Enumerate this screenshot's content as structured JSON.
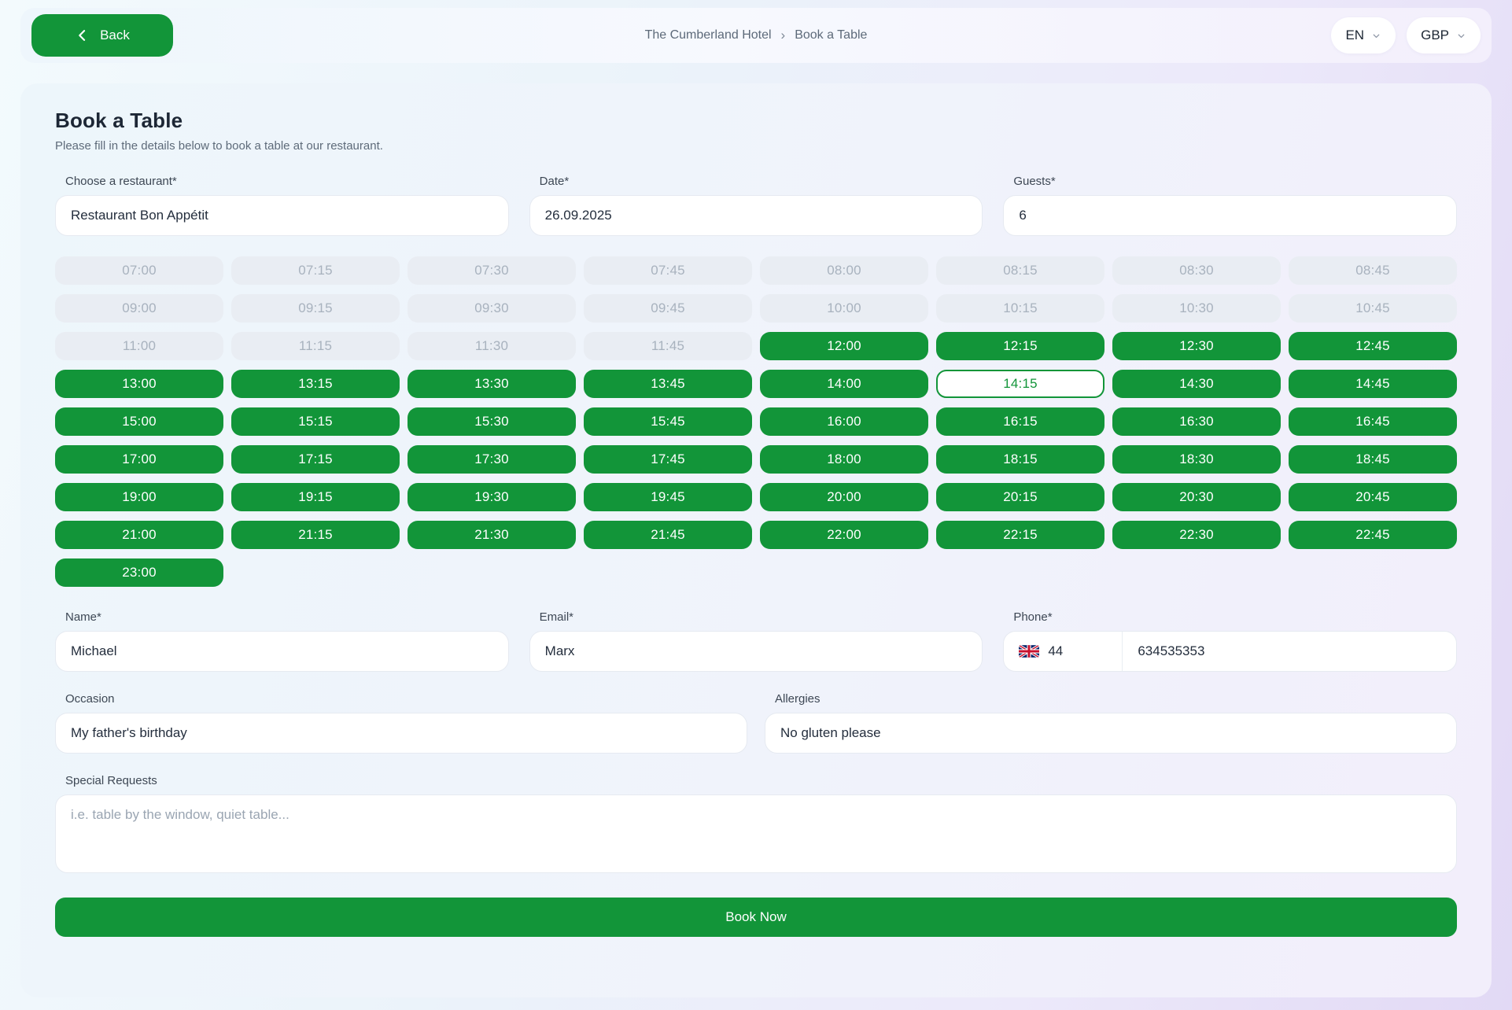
{
  "header": {
    "back_label": "Back",
    "breadcrumb": {
      "items": [
        "The Cumberland Hotel",
        "Book a Table"
      ],
      "separator": "›"
    },
    "language": "EN",
    "currency": "GBP"
  },
  "page": {
    "title": "Book a Table",
    "subtitle": "Please fill in the details below to book a table at our restaurant."
  },
  "form": {
    "restaurant": {
      "label": "Choose a restaurant*",
      "value": "Restaurant Bon Appétit"
    },
    "date": {
      "label": "Date*",
      "value": "26.09.2025"
    },
    "guests": {
      "label": "Guests*",
      "value": "6"
    },
    "name": {
      "label": "Name*",
      "value": "Michael"
    },
    "email": {
      "label": "Email*",
      "value": "Marx"
    },
    "phone": {
      "label": "Phone*",
      "flag": "uk-flag",
      "country_code": "44",
      "number": "634535353"
    },
    "occasion": {
      "label": "Occasion",
      "value": "My father's birthday"
    },
    "allergies": {
      "label": "Allergies",
      "value": "No gluten please"
    },
    "special_requests": {
      "label": "Special Requests",
      "placeholder": "i.e. table by the window, quiet table..."
    },
    "submit_label": "Book Now"
  },
  "time_slots": {
    "selected": "14:15",
    "slots": [
      {
        "time": "07:00",
        "state": "disabled"
      },
      {
        "time": "07:15",
        "state": "disabled"
      },
      {
        "time": "07:30",
        "state": "disabled"
      },
      {
        "time": "07:45",
        "state": "disabled"
      },
      {
        "time": "08:00",
        "state": "disabled"
      },
      {
        "time": "08:15",
        "state": "disabled"
      },
      {
        "time": "08:30",
        "state": "disabled"
      },
      {
        "time": "08:45",
        "state": "disabled"
      },
      {
        "time": "09:00",
        "state": "disabled"
      },
      {
        "time": "09:15",
        "state": "disabled"
      },
      {
        "time": "09:30",
        "state": "disabled"
      },
      {
        "time": "09:45",
        "state": "disabled"
      },
      {
        "time": "10:00",
        "state": "disabled"
      },
      {
        "time": "10:15",
        "state": "disabled"
      },
      {
        "time": "10:30",
        "state": "disabled"
      },
      {
        "time": "10:45",
        "state": "disabled"
      },
      {
        "time": "11:00",
        "state": "disabled"
      },
      {
        "time": "11:15",
        "state": "disabled"
      },
      {
        "time": "11:30",
        "state": "disabled"
      },
      {
        "time": "11:45",
        "state": "disabled"
      },
      {
        "time": "12:00",
        "state": "available"
      },
      {
        "time": "12:15",
        "state": "available"
      },
      {
        "time": "12:30",
        "state": "available"
      },
      {
        "time": "12:45",
        "state": "available"
      },
      {
        "time": "13:00",
        "state": "available"
      },
      {
        "time": "13:15",
        "state": "available"
      },
      {
        "time": "13:30",
        "state": "available"
      },
      {
        "time": "13:45",
        "state": "available"
      },
      {
        "time": "14:00",
        "state": "available"
      },
      {
        "time": "14:15",
        "state": "selected"
      },
      {
        "time": "14:30",
        "state": "available"
      },
      {
        "time": "14:45",
        "state": "available"
      },
      {
        "time": "15:00",
        "state": "available"
      },
      {
        "time": "15:15",
        "state": "available"
      },
      {
        "time": "15:30",
        "state": "available"
      },
      {
        "time": "15:45",
        "state": "available"
      },
      {
        "time": "16:00",
        "state": "available"
      },
      {
        "time": "16:15",
        "state": "available"
      },
      {
        "time": "16:30",
        "state": "available"
      },
      {
        "time": "16:45",
        "state": "available"
      },
      {
        "time": "17:00",
        "state": "available"
      },
      {
        "time": "17:15",
        "state": "available"
      },
      {
        "time": "17:30",
        "state": "available"
      },
      {
        "time": "17:45",
        "state": "available"
      },
      {
        "time": "18:00",
        "state": "available"
      },
      {
        "time": "18:15",
        "state": "available"
      },
      {
        "time": "18:30",
        "state": "available"
      },
      {
        "time": "18:45",
        "state": "available"
      },
      {
        "time": "19:00",
        "state": "available"
      },
      {
        "time": "19:15",
        "state": "available"
      },
      {
        "time": "19:30",
        "state": "available"
      },
      {
        "time": "19:45",
        "state": "available"
      },
      {
        "time": "20:00",
        "state": "available"
      },
      {
        "time": "20:15",
        "state": "available"
      },
      {
        "time": "20:30",
        "state": "available"
      },
      {
        "time": "20:45",
        "state": "available"
      },
      {
        "time": "21:00",
        "state": "available"
      },
      {
        "time": "21:15",
        "state": "available"
      },
      {
        "time": "21:30",
        "state": "available"
      },
      {
        "time": "21:45",
        "state": "available"
      },
      {
        "time": "22:00",
        "state": "available"
      },
      {
        "time": "22:15",
        "state": "available"
      },
      {
        "time": "22:30",
        "state": "available"
      },
      {
        "time": "22:45",
        "state": "available"
      },
      {
        "time": "23:00",
        "state": "available"
      }
    ]
  },
  "colors": {
    "accent_green": "#129539",
    "disabled_slot_bg": "#e9edf3",
    "disabled_slot_text": "#a8b2be"
  }
}
